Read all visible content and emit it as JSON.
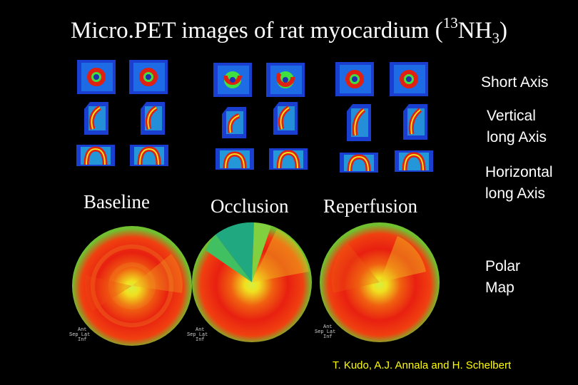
{
  "title": {
    "main": "Micro.PET images of rat myocardium (",
    "sup": "13",
    "mid": "NH",
    "sub": "3",
    "close": ")"
  },
  "conditions": {
    "baseline": "Baseline",
    "occlusion": "Occlusion",
    "reperfusion": "Reperfusion"
  },
  "views": {
    "short_axis": "Short Axis",
    "vertical_line1": "Vertical",
    "vertical_line2": "long Axis",
    "horizontal_line1": "Horizontal",
    "horizontal_line2": "long Axis",
    "polar_line1": "Polar",
    "polar_line2": "Map"
  },
  "credit": "T. Kudo, A.J. Annala and H. Schelbert",
  "polar_legend": {
    "line1": "Ant",
    "line2": "Sep Lat",
    "line3": "Inf"
  },
  "colors": {
    "background": "#000000",
    "text": "#ffffff",
    "credit": "#ffff00",
    "tile_bg": "#1030c0"
  }
}
